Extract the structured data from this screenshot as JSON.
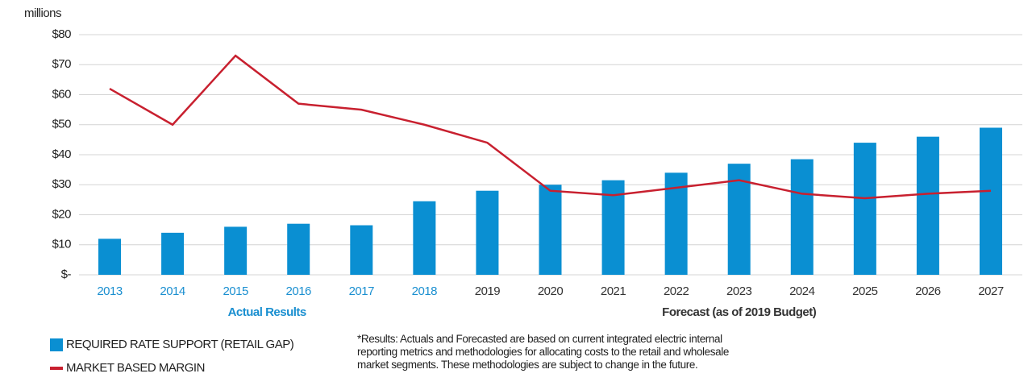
{
  "chart_data": {
    "type": "bar",
    "y_unit_label": "millions",
    "categories": [
      "2013",
      "2014",
      "2015",
      "2016",
      "2017",
      "2018",
      "2019",
      "2020",
      "2021",
      "2022",
      "2023",
      "2024",
      "2025",
      "2026",
      "2027"
    ],
    "series": [
      {
        "name": "REQUIRED RATE SUPPORT (RETAIL GAP)",
        "type": "bar",
        "color": "#0a8fd2",
        "values": [
          12,
          14,
          16,
          17,
          16.5,
          24.5,
          28,
          30,
          31.5,
          34,
          37,
          38.5,
          44,
          46,
          49
        ]
      },
      {
        "name": "MARKET BASED MARGIN",
        "type": "line",
        "color": "#c8202f",
        "values": [
          62,
          50,
          73,
          57,
          55,
          50,
          44,
          28,
          26.5,
          29,
          31.5,
          27,
          25.5,
          27,
          28
        ]
      }
    ],
    "ylim": [
      0,
      80
    ],
    "yticks": [
      {
        "value": 0,
        "label": "$-"
      },
      {
        "value": 10,
        "label": "$10"
      },
      {
        "value": 20,
        "label": "$20"
      },
      {
        "value": 30,
        "label": "$30"
      },
      {
        "value": 40,
        "label": "$40"
      },
      {
        "value": 50,
        "label": "$50"
      },
      {
        "value": 60,
        "label": "$60"
      },
      {
        "value": 70,
        "label": "$70"
      },
      {
        "value": 80,
        "label": "$80"
      }
    ],
    "grid": true,
    "groups": [
      {
        "label": "Actual Results",
        "from": "2013",
        "to": "2018",
        "color": "#1a8fd0"
      },
      {
        "label": "Forecast (as of 2019 Budget)",
        "from": "2019",
        "to": "2027",
        "color": "#333333"
      }
    ],
    "note": [
      "*Results: Actuals and Forecasted are based on current integrated electric internal",
      "reporting metrics and methodologies for allocating costs to the retail and wholesale",
      "market segments. These methodologies are subject to change in the future."
    ]
  }
}
